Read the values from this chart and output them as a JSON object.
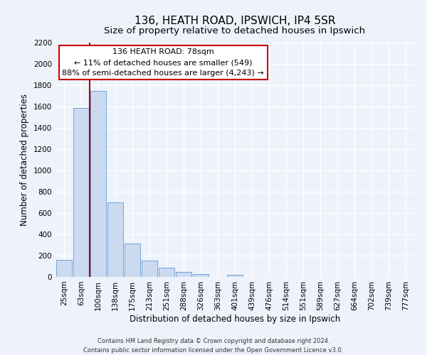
{
  "title": "136, HEATH ROAD, IPSWICH, IP4 5SR",
  "subtitle": "Size of property relative to detached houses in Ipswich",
  "xlabel": "Distribution of detached houses by size in Ipswich",
  "ylabel": "Number of detached properties",
  "bar_labels": [
    "25sqm",
    "63sqm",
    "100sqm",
    "138sqm",
    "175sqm",
    "213sqm",
    "251sqm",
    "288sqm",
    "326sqm",
    "363sqm",
    "401sqm",
    "439sqm",
    "476sqm",
    "514sqm",
    "551sqm",
    "589sqm",
    "627sqm",
    "664sqm",
    "702sqm",
    "739sqm",
    "777sqm"
  ],
  "bar_values": [
    160,
    1590,
    1750,
    700,
    315,
    155,
    85,
    50,
    30,
    0,
    20,
    0,
    0,
    0,
    0,
    0,
    0,
    0,
    0,
    0,
    0
  ],
  "bar_color": "#ccdaf0",
  "bar_edge_color": "#5b9bd5",
  "vline_x": 1.5,
  "vline_color": "#aa0000",
  "annotation_title": "136 HEATH ROAD: 78sqm",
  "annotation_line1": "← 11% of detached houses are smaller (549)",
  "annotation_line2": "88% of semi-detached houses are larger (4,243) →",
  "annotation_box_facecolor": "#ffffff",
  "annotation_box_edgecolor": "#cc0000",
  "ylim": [
    0,
    2200
  ],
  "yticks": [
    0,
    200,
    400,
    600,
    800,
    1000,
    1200,
    1400,
    1600,
    1800,
    2000,
    2200
  ],
  "footer1": "Contains HM Land Registry data © Crown copyright and database right 2024.",
  "footer2": "Contains public sector information licensed under the Open Government Licence v3.0.",
  "background_color": "#eef2fa",
  "grid_color": "#ffffff",
  "title_fontsize": 11,
  "subtitle_fontsize": 9.5,
  "axis_label_fontsize": 8.5,
  "tick_fontsize": 7.5,
  "annotation_fontsize": 8,
  "footer_fontsize": 6
}
